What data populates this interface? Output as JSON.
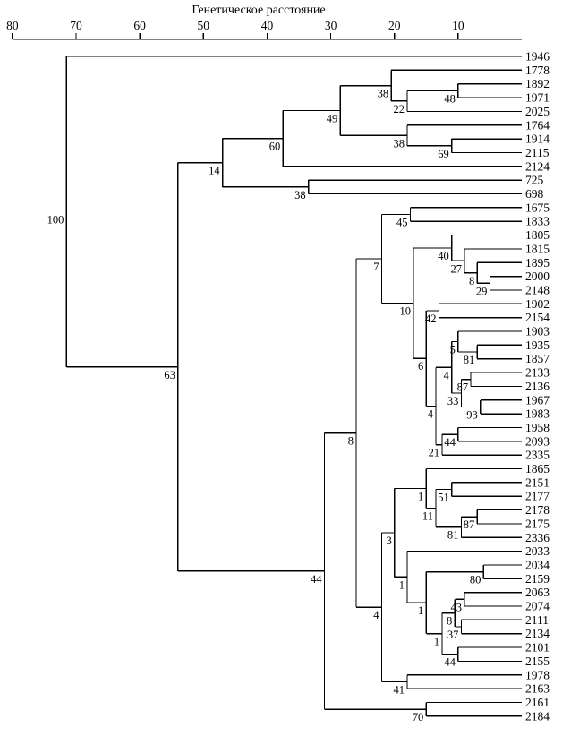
{
  "figure": {
    "kind": "upgma-dendrogram-with-bootstrap-values"
  },
  "chart_data": {
    "type": "dendrogram",
    "title": "Генетическое расстояние",
    "line_color": "#000000",
    "axis": {
      "position": "top",
      "min": 0,
      "max": 80,
      "direction": "decreasing-to-right",
      "ticks": [
        80,
        70,
        60,
        50,
        40,
        30,
        20,
        10
      ]
    },
    "tree": {
      "support": 100,
      "dist": 71.5,
      "children": [
        {
          "name": "1946"
        },
        {
          "support": 63,
          "dist": 54,
          "children": [
            {
              "support": 14,
              "dist": 47,
              "children": [
                {
                  "support": 60,
                  "dist": 37.5,
                  "children": [
                    {
                      "support": 49,
                      "dist": 28.5,
                      "children": [
                        {
                          "support": 38,
                          "dist": 20.5,
                          "children": [
                            {
                              "name": "1778"
                            },
                            {
                              "support": 22,
                              "dist": 18,
                              "children": [
                                {
                                  "support": 48,
                                  "dist": 10,
                                  "children": [
                                    {
                                      "name": "1892"
                                    },
                                    {
                                      "name": "1971"
                                    }
                                  ]
                                },
                                {
                                  "name": "2025"
                                }
                              ]
                            }
                          ]
                        },
                        {
                          "support": 38,
                          "dist": 18,
                          "children": [
                            {
                              "name": "1764"
                            },
                            {
                              "support": 69,
                              "dist": 11,
                              "children": [
                                {
                                  "name": "1914"
                                },
                                {
                                  "name": "2115"
                                }
                              ]
                            }
                          ]
                        }
                      ]
                    },
                    {
                      "name": "2124"
                    }
                  ]
                },
                {
                  "support": 38,
                  "dist": 33.5,
                  "children": [
                    {
                      "name": "725"
                    },
                    {
                      "name": "698"
                    }
                  ]
                }
              ]
            },
            {
              "support": 44,
              "dist": 31,
              "children": [
                {
                  "support": 8,
                  "dist": 26,
                  "children": [
                    {
                      "support": 7,
                      "dist": 22,
                      "children": [
                        {
                          "support": 45,
                          "dist": 17.5,
                          "children": [
                            {
                              "name": "1675"
                            },
                            {
                              "name": "1833"
                            }
                          ]
                        },
                        {
                          "support": 10,
                          "dist": 17,
                          "children": [
                            {
                              "support": 40,
                              "dist": 11,
                              "children": [
                                {
                                  "name": "1805"
                                },
                                {
                                  "support": 27,
                                  "dist": 9,
                                  "children": [
                                    {
                                      "name": "1815"
                                    },
                                    {
                                      "support": 8,
                                      "dist": 7,
                                      "children": [
                                        {
                                          "name": "1895"
                                        },
                                        {
                                          "support": 29,
                                          "dist": 5,
                                          "children": [
                                            {
                                              "name": "2000"
                                            },
                                            {
                                              "name": "2148"
                                            }
                                          ]
                                        }
                                      ]
                                    }
                                  ]
                                }
                              ]
                            },
                            {
                              "support": 6,
                              "dist": 15,
                              "children": [
                                {
                                  "support": 42,
                                  "dist": 13,
                                  "children": [
                                    {
                                      "name": "1902"
                                    },
                                    {
                                      "name": "2154"
                                    }
                                  ]
                                },
                                {
                                  "support": 4,
                                  "dist": 13.5,
                                  "children": [
                                    {
                                      "support": 4,
                                      "dist": 11,
                                      "children": [
                                        {
                                          "support": 5,
                                          "dist": 10,
                                          "children": [
                                            {
                                              "name": "1903"
                                            },
                                            {
                                              "support": 81,
                                              "dist": 7,
                                              "children": [
                                                {
                                                  "name": "1935"
                                                },
                                                {
                                                  "name": "1857"
                                                }
                                              ]
                                            }
                                          ]
                                        },
                                        {
                                          "support": 33,
                                          "dist": 9.5,
                                          "children": [
                                            {
                                              "support": 87,
                                              "dist": 8,
                                              "children": [
                                                {
                                                  "name": "2133"
                                                },
                                                {
                                                  "name": "2136"
                                                }
                                              ]
                                            },
                                            {
                                              "support": 93,
                                              "dist": 6.5,
                                              "children": [
                                                {
                                                  "name": "1967"
                                                },
                                                {
                                                  "name": "1983"
                                                }
                                              ]
                                            }
                                          ]
                                        }
                                      ]
                                    },
                                    {
                                      "support": 21,
                                      "dist": 12.5,
                                      "children": [
                                        {
                                          "support": 44,
                                          "dist": 10,
                                          "children": [
                                            {
                                              "name": "1958"
                                            },
                                            {
                                              "name": "2093"
                                            }
                                          ]
                                        },
                                        {
                                          "name": "2335"
                                        }
                                      ]
                                    }
                                  ]
                                }
                              ]
                            }
                          ]
                        }
                      ]
                    },
                    {
                      "support": 4,
                      "dist": 22,
                      "children": [
                        {
                          "support": 3,
                          "dist": 20,
                          "children": [
                            {
                              "support": 1,
                              "dist": 15,
                              "children": [
                                {
                                  "name": "1865"
                                },
                                {
                                  "support": 11,
                                  "dist": 13.5,
                                  "children": [
                                    {
                                      "support": 51,
                                      "dist": 11,
                                      "children": [
                                        {
                                          "name": "2151"
                                        },
                                        {
                                          "name": "2177"
                                        }
                                      ]
                                    },
                                    {
                                      "support": 81,
                                      "dist": 9.5,
                                      "children": [
                                        {
                                          "support": 87,
                                          "dist": 7,
                                          "children": [
                                            {
                                              "name": "2178"
                                            },
                                            {
                                              "name": "2175"
                                            }
                                          ]
                                        },
                                        {
                                          "name": "2336"
                                        }
                                      ]
                                    }
                                  ]
                                }
                              ]
                            },
                            {
                              "support": 1,
                              "dist": 18,
                              "children": [
                                {
                                  "name": "2033"
                                },
                                {
                                  "support": 1,
                                  "dist": 15,
                                  "children": [
                                    {
                                      "support": 80,
                                      "dist": 6,
                                      "children": [
                                        {
                                          "name": "2034"
                                        },
                                        {
                                          "name": "2159"
                                        }
                                      ]
                                    },
                                    {
                                      "support": 1,
                                      "dist": 12.5,
                                      "children": [
                                        {
                                          "support": 8,
                                          "dist": 10.5,
                                          "children": [
                                            {
                                              "support": 43,
                                              "dist": 9,
                                              "children": [
                                                {
                                                  "name": "2063"
                                                },
                                                {
                                                  "name": "2074"
                                                }
                                              ]
                                            },
                                            {
                                              "support": 37,
                                              "dist": 9.5,
                                              "children": [
                                                {
                                                  "name": "2111"
                                                },
                                                {
                                                  "name": "2134"
                                                }
                                              ]
                                            }
                                          ]
                                        },
                                        {
                                          "support": 44,
                                          "dist": 10,
                                          "children": [
                                            {
                                              "name": "2101"
                                            },
                                            {
                                              "name": "2155"
                                            }
                                          ]
                                        }
                                      ]
                                    }
                                  ]
                                }
                              ]
                            }
                          ]
                        },
                        {
                          "support": 41,
                          "dist": 18,
                          "children": [
                            {
                              "name": "1978"
                            },
                            {
                              "name": "2163"
                            }
                          ]
                        }
                      ]
                    }
                  ]
                },
                {
                  "support": 70,
                  "dist": 15,
                  "children": [
                    {
                      "name": "2161"
                    },
                    {
                      "name": "2184"
                    }
                  ]
                }
              ]
            }
          ]
        }
      ]
    }
  }
}
